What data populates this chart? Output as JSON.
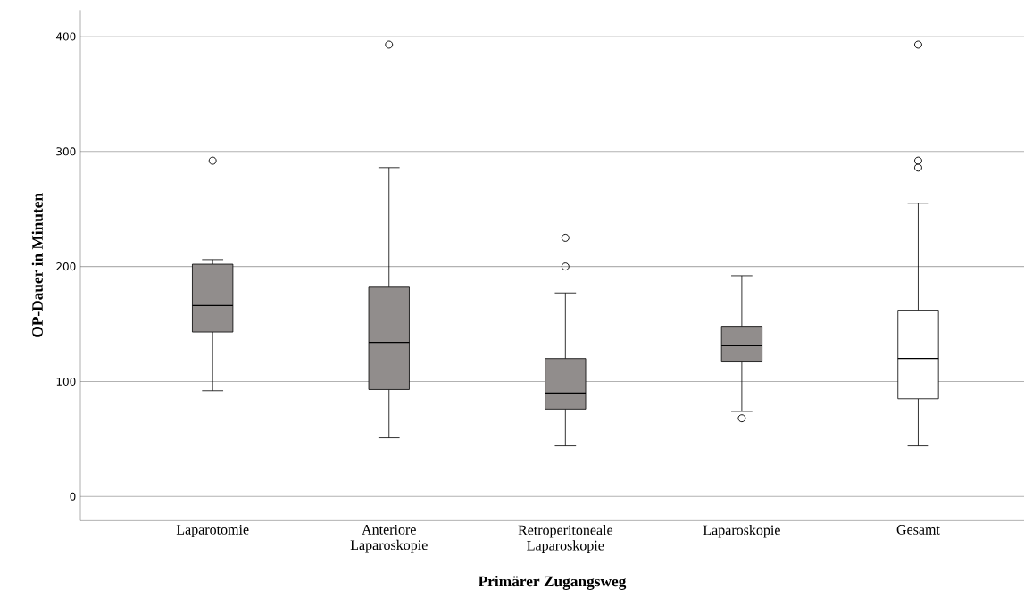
{
  "chart_data": {
    "type": "box",
    "xlabel": "Primärer Zugangsweg",
    "ylabel": "OP-Dauer in Minuten",
    "categories": [
      "Laparotomie",
      "Anteriore Laparoskopie",
      "Retroperitoneale Laparoskopie",
      "Laparoskopie",
      "Gesamt"
    ],
    "boxes": [
      {
        "low": 92,
        "q1": 143,
        "median": 166,
        "q3": 202,
        "high": 206,
        "outliers": [
          292
        ]
      },
      {
        "low": 51,
        "q1": 93,
        "median": 134,
        "q3": 182,
        "high": 286,
        "outliers": [
          393
        ]
      },
      {
        "low": 44,
        "q1": 76,
        "median": 90,
        "q3": 120,
        "high": 177,
        "outliers": [
          225,
          200
        ]
      },
      {
        "low": 74,
        "q1": 117,
        "median": 131,
        "q3": 148,
        "high": 192,
        "outliers": [
          68
        ]
      },
      {
        "low": 44,
        "q1": 85,
        "median": 120,
        "q3": 162,
        "high": 255,
        "outliers": [
          393,
          292,
          286
        ]
      }
    ],
    "colors": [
      "#918d8c",
      "#918d8c",
      "#918d8c",
      "#918d8c",
      "#ffffff"
    ],
    "ylim": [
      -21,
      423
    ],
    "yticks": [
      0,
      100,
      200,
      300,
      400
    ],
    "grid": "y"
  }
}
